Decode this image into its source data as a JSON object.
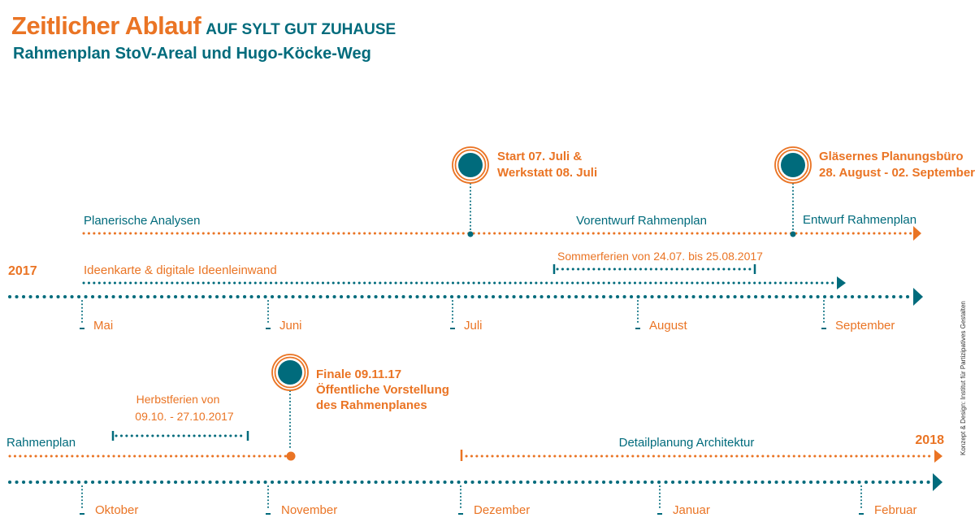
{
  "header": {
    "title": "Zeitlicher Ablauf",
    "tagline": "AUF SYLT GUT ZUHAUSE",
    "subtitle": "Rahmenplan StoV-Areal und Hugo-Köcke-Weg"
  },
  "credit": "Konzept & Design: Institut für Partizipatives Gestalten",
  "colors": {
    "orange": "#ea7424",
    "teal": "#006b7c"
  },
  "row1": {
    "year_start": "2017",
    "months": [
      "Mai",
      "Juni",
      "Juli",
      "August",
      "September"
    ],
    "phases": [
      {
        "label": "Planerische Analysen",
        "color": "teal"
      },
      {
        "label": "Vorentwurf Rahmenplan",
        "color": "teal"
      },
      {
        "label": "Entwurf Rahmenplan",
        "color": "teal"
      }
    ],
    "ideas_track": {
      "label": "Ideenkarte & digitale Ideenleinwand",
      "color": "orange"
    },
    "holiday": {
      "label": "Sommerferien von 24.07. bis 25.08.2017",
      "color": "orange"
    },
    "milestones": [
      {
        "lines": [
          "Start 07. Juli &",
          "Werkstatt 08. Juli"
        ],
        "icon": "milestone-circle-icon"
      },
      {
        "lines": [
          "Gläsernes Planungsbüro",
          "28. August - 02. September"
        ],
        "icon": "milestone-circle-icon"
      }
    ]
  },
  "row2": {
    "year_end": "2018",
    "months": [
      "Oktober",
      "November",
      "Dezember",
      "Januar",
      "Februar"
    ],
    "phases": [
      {
        "label": "Rahmenplan",
        "color": "teal"
      },
      {
        "label": "Detailplanung Architektur",
        "color": "teal"
      }
    ],
    "holiday": {
      "lines": [
        "Herbstferien von",
        "09.10. - 27.10.2017"
      ],
      "color": "orange"
    },
    "milestones": [
      {
        "lines": [
          "Finale 09.11.17",
          "Öffentliche Vorstellung",
          "des Rahmenplanes"
        ],
        "icon": "milestone-circle-icon"
      }
    ]
  }
}
